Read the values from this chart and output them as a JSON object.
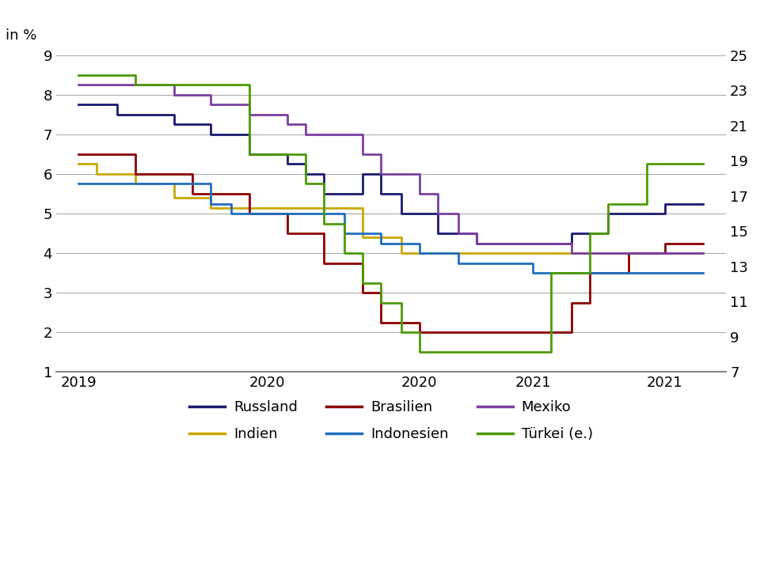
{
  "title": "in %",
  "left_ylim": [
    1,
    9
  ],
  "right_ylim": [
    7,
    25
  ],
  "left_yticks": [
    1,
    2,
    3,
    4,
    5,
    6,
    7,
    8,
    9
  ],
  "right_yticks": [
    7,
    9,
    11,
    13,
    15,
    17,
    19,
    21,
    23,
    25
  ],
  "background_color": "#ffffff",
  "grid_color": "#aaaaaa",
  "xlim": [
    2018.9,
    2021.85
  ],
  "xtick_positions": [
    2019.0,
    2019.83,
    2020.5,
    2021.0,
    2021.58
  ],
  "xtick_labels": [
    "2019",
    "2020",
    "2020",
    "2021",
    "2021"
  ],
  "series": {
    "Russland": {
      "color": "#1a1a6e",
      "data": [
        [
          2019.0,
          7.75
        ],
        [
          2019.17,
          7.75
        ],
        [
          2019.17,
          7.5
        ],
        [
          2019.42,
          7.5
        ],
        [
          2019.42,
          7.25
        ],
        [
          2019.58,
          7.25
        ],
        [
          2019.58,
          7.0
        ],
        [
          2019.75,
          7.0
        ],
        [
          2019.75,
          6.5
        ],
        [
          2019.92,
          6.5
        ],
        [
          2019.92,
          6.25
        ],
        [
          2020.0,
          6.25
        ],
        [
          2020.0,
          6.0
        ],
        [
          2020.08,
          6.0
        ],
        [
          2020.08,
          5.5
        ],
        [
          2020.25,
          5.5
        ],
        [
          2020.25,
          6.0
        ],
        [
          2020.33,
          6.0
        ],
        [
          2020.33,
          5.5
        ],
        [
          2020.42,
          5.5
        ],
        [
          2020.42,
          5.0
        ],
        [
          2020.58,
          5.0
        ],
        [
          2020.58,
          4.5
        ],
        [
          2020.75,
          4.5
        ],
        [
          2020.75,
          4.25
        ],
        [
          2021.17,
          4.25
        ],
        [
          2021.17,
          4.5
        ],
        [
          2021.33,
          4.5
        ],
        [
          2021.33,
          5.0
        ],
        [
          2021.58,
          5.0
        ],
        [
          2021.58,
          5.25
        ],
        [
          2021.75,
          5.25
        ]
      ]
    },
    "Indien": {
      "color": "#c8a800",
      "data": [
        [
          2019.0,
          6.25
        ],
        [
          2019.08,
          6.25
        ],
        [
          2019.08,
          6.0
        ],
        [
          2019.25,
          6.0
        ],
        [
          2019.25,
          5.75
        ],
        [
          2019.42,
          5.75
        ],
        [
          2019.42,
          5.4
        ],
        [
          2019.58,
          5.4
        ],
        [
          2019.58,
          5.15
        ],
        [
          2020.25,
          5.15
        ],
        [
          2020.25,
          4.4
        ],
        [
          2020.42,
          4.4
        ],
        [
          2020.42,
          4.0
        ],
        [
          2021.75,
          4.0
        ]
      ]
    },
    "Brasilien": {
      "color": "#8b0000",
      "data": [
        [
          2019.0,
          6.5
        ],
        [
          2019.25,
          6.5
        ],
        [
          2019.25,
          6.0
        ],
        [
          2019.5,
          6.0
        ],
        [
          2019.5,
          5.5
        ],
        [
          2019.75,
          5.5
        ],
        [
          2019.75,
          5.0
        ],
        [
          2019.92,
          5.0
        ],
        [
          2019.92,
          4.5
        ],
        [
          2020.08,
          4.5
        ],
        [
          2020.08,
          3.75
        ],
        [
          2020.25,
          3.75
        ],
        [
          2020.25,
          3.0
        ],
        [
          2020.33,
          3.0
        ],
        [
          2020.33,
          2.25
        ],
        [
          2020.5,
          2.25
        ],
        [
          2020.5,
          2.0
        ],
        [
          2020.67,
          2.0
        ],
        [
          2020.67,
          2.0
        ],
        [
          2021.17,
          2.0
        ],
        [
          2021.17,
          2.75
        ],
        [
          2021.25,
          2.75
        ],
        [
          2021.25,
          3.5
        ],
        [
          2021.42,
          3.5
        ],
        [
          2021.42,
          4.0
        ],
        [
          2021.58,
          4.0
        ],
        [
          2021.58,
          4.25
        ],
        [
          2021.75,
          4.25
        ]
      ]
    },
    "Indonesien": {
      "color": "#1f6fbf",
      "data": [
        [
          2019.0,
          5.75
        ],
        [
          2019.58,
          5.75
        ],
        [
          2019.58,
          5.25
        ],
        [
          2019.67,
          5.25
        ],
        [
          2019.67,
          5.0
        ],
        [
          2019.83,
          5.0
        ],
        [
          2019.83,
          5.0
        ],
        [
          2020.17,
          5.0
        ],
        [
          2020.17,
          4.5
        ],
        [
          2020.25,
          4.5
        ],
        [
          2020.25,
          4.5
        ],
        [
          2020.33,
          4.5
        ],
        [
          2020.33,
          4.25
        ],
        [
          2020.5,
          4.25
        ],
        [
          2020.5,
          4.0
        ],
        [
          2020.67,
          4.0
        ],
        [
          2020.67,
          3.75
        ],
        [
          2020.83,
          3.75
        ],
        [
          2020.83,
          3.75
        ],
        [
          2021.0,
          3.75
        ],
        [
          2021.0,
          3.5
        ],
        [
          2021.42,
          3.5
        ],
        [
          2021.42,
          3.5
        ],
        [
          2021.75,
          3.5
        ]
      ]
    },
    "Mexiko": {
      "color": "#7b3fa0",
      "data": [
        [
          2019.0,
          8.25
        ],
        [
          2019.42,
          8.25
        ],
        [
          2019.42,
          8.0
        ],
        [
          2019.58,
          8.0
        ],
        [
          2019.58,
          7.75
        ],
        [
          2019.75,
          7.75
        ],
        [
          2019.75,
          7.5
        ],
        [
          2019.92,
          7.5
        ],
        [
          2019.92,
          7.25
        ],
        [
          2020.0,
          7.25
        ],
        [
          2020.0,
          7.0
        ],
        [
          2020.25,
          7.0
        ],
        [
          2020.25,
          6.5
        ],
        [
          2020.33,
          6.5
        ],
        [
          2020.33,
          6.0
        ],
        [
          2020.5,
          6.0
        ],
        [
          2020.5,
          5.5
        ],
        [
          2020.58,
          5.5
        ],
        [
          2020.58,
          5.0
        ],
        [
          2020.67,
          5.0
        ],
        [
          2020.67,
          4.5
        ],
        [
          2020.75,
          4.5
        ],
        [
          2020.75,
          4.25
        ],
        [
          2020.83,
          4.25
        ],
        [
          2020.83,
          4.25
        ],
        [
          2021.17,
          4.25
        ],
        [
          2021.17,
          4.0
        ],
        [
          2021.75,
          4.0
        ]
      ]
    },
    "Türkei (e.)": {
      "color": "#4e9a06",
      "data": [
        [
          2019.0,
          8.5
        ],
        [
          2019.25,
          8.5
        ],
        [
          2019.25,
          8.25
        ],
        [
          2019.75,
          8.25
        ],
        [
          2019.75,
          6.5
        ],
        [
          2020.0,
          6.5
        ],
        [
          2020.0,
          5.75
        ],
        [
          2020.08,
          5.75
        ],
        [
          2020.08,
          4.75
        ],
        [
          2020.17,
          4.75
        ],
        [
          2020.17,
          4.0
        ],
        [
          2020.25,
          4.0
        ],
        [
          2020.25,
          3.25
        ],
        [
          2020.33,
          3.25
        ],
        [
          2020.33,
          2.75
        ],
        [
          2020.42,
          2.75
        ],
        [
          2020.42,
          2.0
        ],
        [
          2020.5,
          2.0
        ],
        [
          2020.5,
          1.5
        ],
        [
          2020.67,
          1.5
        ],
        [
          2020.67,
          1.5
        ],
        [
          2021.08,
          1.5
        ],
        [
          2021.08,
          3.5
        ],
        [
          2021.25,
          3.5
        ],
        [
          2021.25,
          4.5
        ],
        [
          2021.33,
          4.5
        ],
        [
          2021.33,
          5.25
        ],
        [
          2021.5,
          5.25
        ],
        [
          2021.5,
          6.25
        ],
        [
          2021.75,
          6.25
        ]
      ]
    }
  },
  "legend_entries": [
    {
      "label": "Russland",
      "color": "#1a1a6e"
    },
    {
      "label": "Indien",
      "color": "#c8a800"
    },
    {
      "label": "Brasilien",
      "color": "#8b0000"
    },
    {
      "label": "Indonesien",
      "color": "#1f6fbf"
    },
    {
      "label": "Mexiko",
      "color": "#7b3fa0"
    },
    {
      "label": "Türkei (e.)",
      "color": "#4e9a06"
    }
  ],
  "line_width": 2.0,
  "fontsize": 13
}
